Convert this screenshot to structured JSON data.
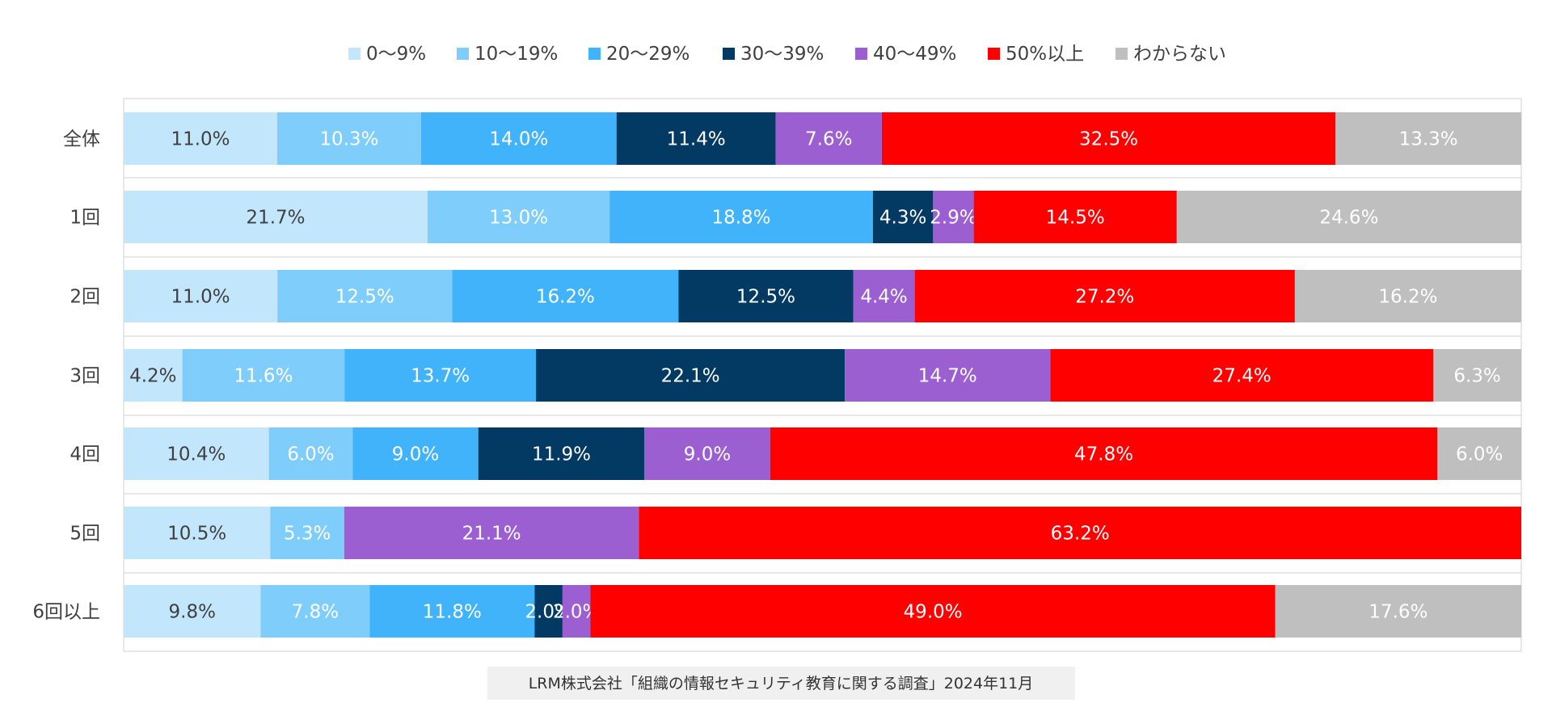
{
  "chart_data": {
    "type": "bar",
    "orientation": "horizontal",
    "stacked": true,
    "normalized": true,
    "title": "",
    "legend_position": "top",
    "categories": [
      "全体",
      "1回",
      "2回",
      "3回",
      "4回",
      "5回",
      "6回以上"
    ],
    "series": [
      {
        "name": "0〜9%",
        "color": "#c2e6fc",
        "label_color": "#404040",
        "values": [
          11.0,
          21.7,
          11.0,
          4.2,
          10.4,
          10.5,
          9.8
        ]
      },
      {
        "name": "10〜19%",
        "color": "#7fcdfb",
        "label_color": "#ffffff",
        "values": [
          10.3,
          13.0,
          12.5,
          11.6,
          6.0,
          5.3,
          7.8
        ]
      },
      {
        "name": "20〜29%",
        "color": "#40b3fb",
        "label_color": "#ffffff",
        "values": [
          14.0,
          18.8,
          16.2,
          13.7,
          9.0,
          0,
          11.8
        ]
      },
      {
        "name": "30〜39%",
        "color": "#033a63",
        "label_color": "#ffffff",
        "values": [
          11.4,
          4.3,
          12.5,
          22.1,
          11.9,
          0,
          2.0
        ]
      },
      {
        "name": "40〜49%",
        "color": "#9c5fd1",
        "label_color": "#ffffff",
        "values": [
          7.6,
          2.9,
          4.4,
          14.7,
          9.0,
          21.1,
          2.0
        ]
      },
      {
        "name": "50%以上",
        "color": "#ff0000",
        "label_color": "#ffffff",
        "values": [
          32.5,
          14.5,
          27.2,
          27.4,
          47.8,
          63.2,
          49.0
        ]
      },
      {
        "name": "わからない",
        "color": "#bfbfbf",
        "label_color": "#ffffff",
        "values": [
          13.3,
          24.6,
          16.2,
          6.3,
          6.0,
          0,
          17.6
        ]
      }
    ],
    "data_labels": [
      [
        "11.0%",
        "10.3%",
        "14.0%",
        "11.4%",
        "7.6%",
        "32.5%",
        "13.3%"
      ],
      [
        "21.7%",
        "13.0%",
        "18.8%",
        "4.3%",
        "2.9%",
        "14.5%",
        "24.6%"
      ],
      [
        "11.0%",
        "12.5%",
        "16.2%",
        "12.5%",
        "4.4%",
        "27.2%",
        "16.2%"
      ],
      [
        "4.2%",
        "11.6%",
        "13.7%",
        "22.1%",
        "14.7%",
        "27.4%",
        "6.3%"
      ],
      [
        "10.4%",
        "6.0%",
        "9.0%",
        "11.9%",
        "9.0%",
        "47.8%",
        "6.0%"
      ],
      [
        "10.5%",
        "5.3%",
        "",
        "",
        "21.1%",
        "63.2%",
        ""
      ],
      [
        "9.8%",
        "7.8%",
        "11.8%",
        "2.0%",
        "2.0%",
        "49.0%",
        "17.6%"
      ]
    ],
    "source_note": "LRM株式会社「組織の情報セキュリティ教育に関する調査」2024年11月"
  }
}
